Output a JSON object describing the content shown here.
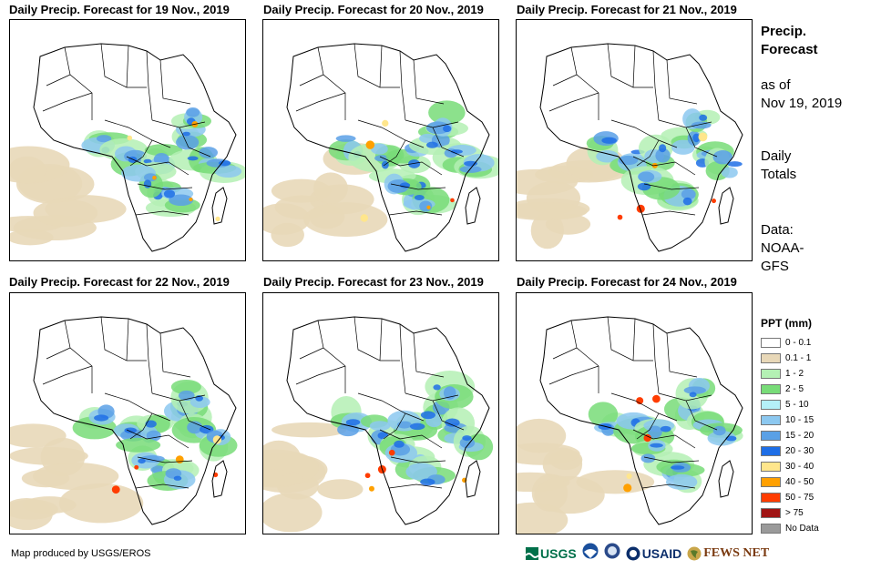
{
  "panels": [
    {
      "title": "Daily Precip. Forecast for 19 Nov., 2019"
    },
    {
      "title": "Daily Precip. Forecast for 20 Nov., 2019"
    },
    {
      "title": "Daily Precip. Forecast for 21 Nov., 2019"
    },
    {
      "title": "Daily Precip. Forecast for 22 Nov., 2019"
    },
    {
      "title": "Daily Precip. Forecast for 23 Nov., 2019"
    },
    {
      "title": "Daily Precip. Forecast for 24 Nov., 2019"
    }
  ],
  "info": {
    "heading_line1": "Precip.",
    "heading_line2": "Forecast",
    "asof_line1": "as of",
    "asof_line2": "Nov 19, 2019",
    "totals_line1": "Daily",
    "totals_line2": "Totals",
    "data_line1": "Data:",
    "data_line2": "NOAA-",
    "data_line3": "GFS"
  },
  "legend": {
    "title": "PPT (mm)",
    "items": [
      {
        "label": "0 - 0.1",
        "color": "#ffffff"
      },
      {
        "label": "0.1 - 1",
        "color": "#e8d8b8"
      },
      {
        "label": "1 - 2",
        "color": "#b4f0b4"
      },
      {
        "label": "2 - 5",
        "color": "#78dc78"
      },
      {
        "label": "5 - 10",
        "color": "#b4f0f8"
      },
      {
        "label": "10 - 15",
        "color": "#8cc8f0"
      },
      {
        "label": "15 - 20",
        "color": "#5aa0e6"
      },
      {
        "label": "20 - 30",
        "color": "#1e6ee6"
      },
      {
        "label": "30 - 40",
        "color": "#ffe68c"
      },
      {
        "label": "40 - 50",
        "color": "#ffa000"
      },
      {
        "label": "50 - 75",
        "color": "#ff3c00"
      },
      {
        "label": "> 75",
        "color": "#a01414"
      },
      {
        "label": "No Data",
        "color": "#9a9a9a"
      }
    ]
  },
  "footer": {
    "credit": "Map produced by USGS/EROS"
  },
  "logos": {
    "usgs": "USGS",
    "usaid": "USAID",
    "fewsnet": "FEWS NET"
  }
}
